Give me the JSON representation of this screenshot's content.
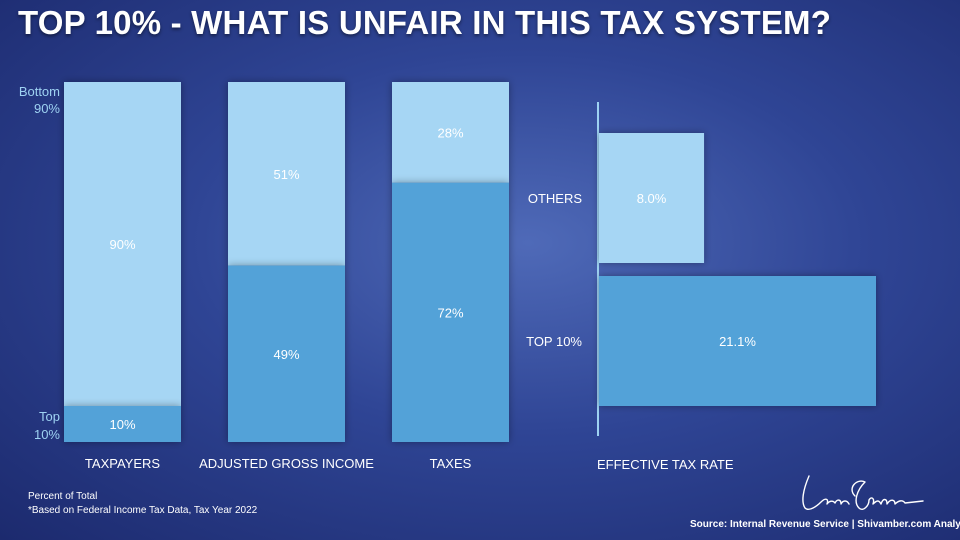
{
  "title": "TOP 10% - WHAT IS UNFAIR IN THIS TAX SYSTEM?",
  "colors": {
    "light": "#a6d6f4",
    "dark": "#52a2d8",
    "axis": "#9ed2f2"
  },
  "chart_data": [
    {
      "type": "bar",
      "stacked": true,
      "categories": [
        "TAXPAYERS",
        "ADJUSTED GROSS INCOME",
        "TAXES"
      ],
      "series": [
        {
          "name": "Top 10%",
          "values": [
            10,
            49,
            72
          ],
          "labels": [
            "10%",
            "49%",
            "72%"
          ]
        },
        {
          "name": "Bottom 90%",
          "values": [
            90,
            51,
            28
          ],
          "labels": [
            "90%",
            "51%",
            "28%"
          ]
        }
      ],
      "ylim": [
        0,
        100
      ],
      "legend_labels": {
        "bottom": [
          "Bottom",
          "90%"
        ],
        "top": [
          "Top",
          "10%"
        ]
      },
      "ylabel": "Percent of Total"
    },
    {
      "type": "bar",
      "orientation": "horizontal",
      "xlabel": "EFFECTIVE TAX RATE",
      "categories": [
        "OTHERS",
        "TOP 10%"
      ],
      "values": [
        8.0,
        21.1
      ],
      "labels": [
        "8.0%",
        "21.1%"
      ]
    }
  ],
  "footnotes": {
    "percent": "Percent of Total",
    "basis": "*Based on Federal Income Tax Data, Tax Year 2022"
  },
  "source": "Source: Internal Revenue Service | Shivamber.com Analysis"
}
